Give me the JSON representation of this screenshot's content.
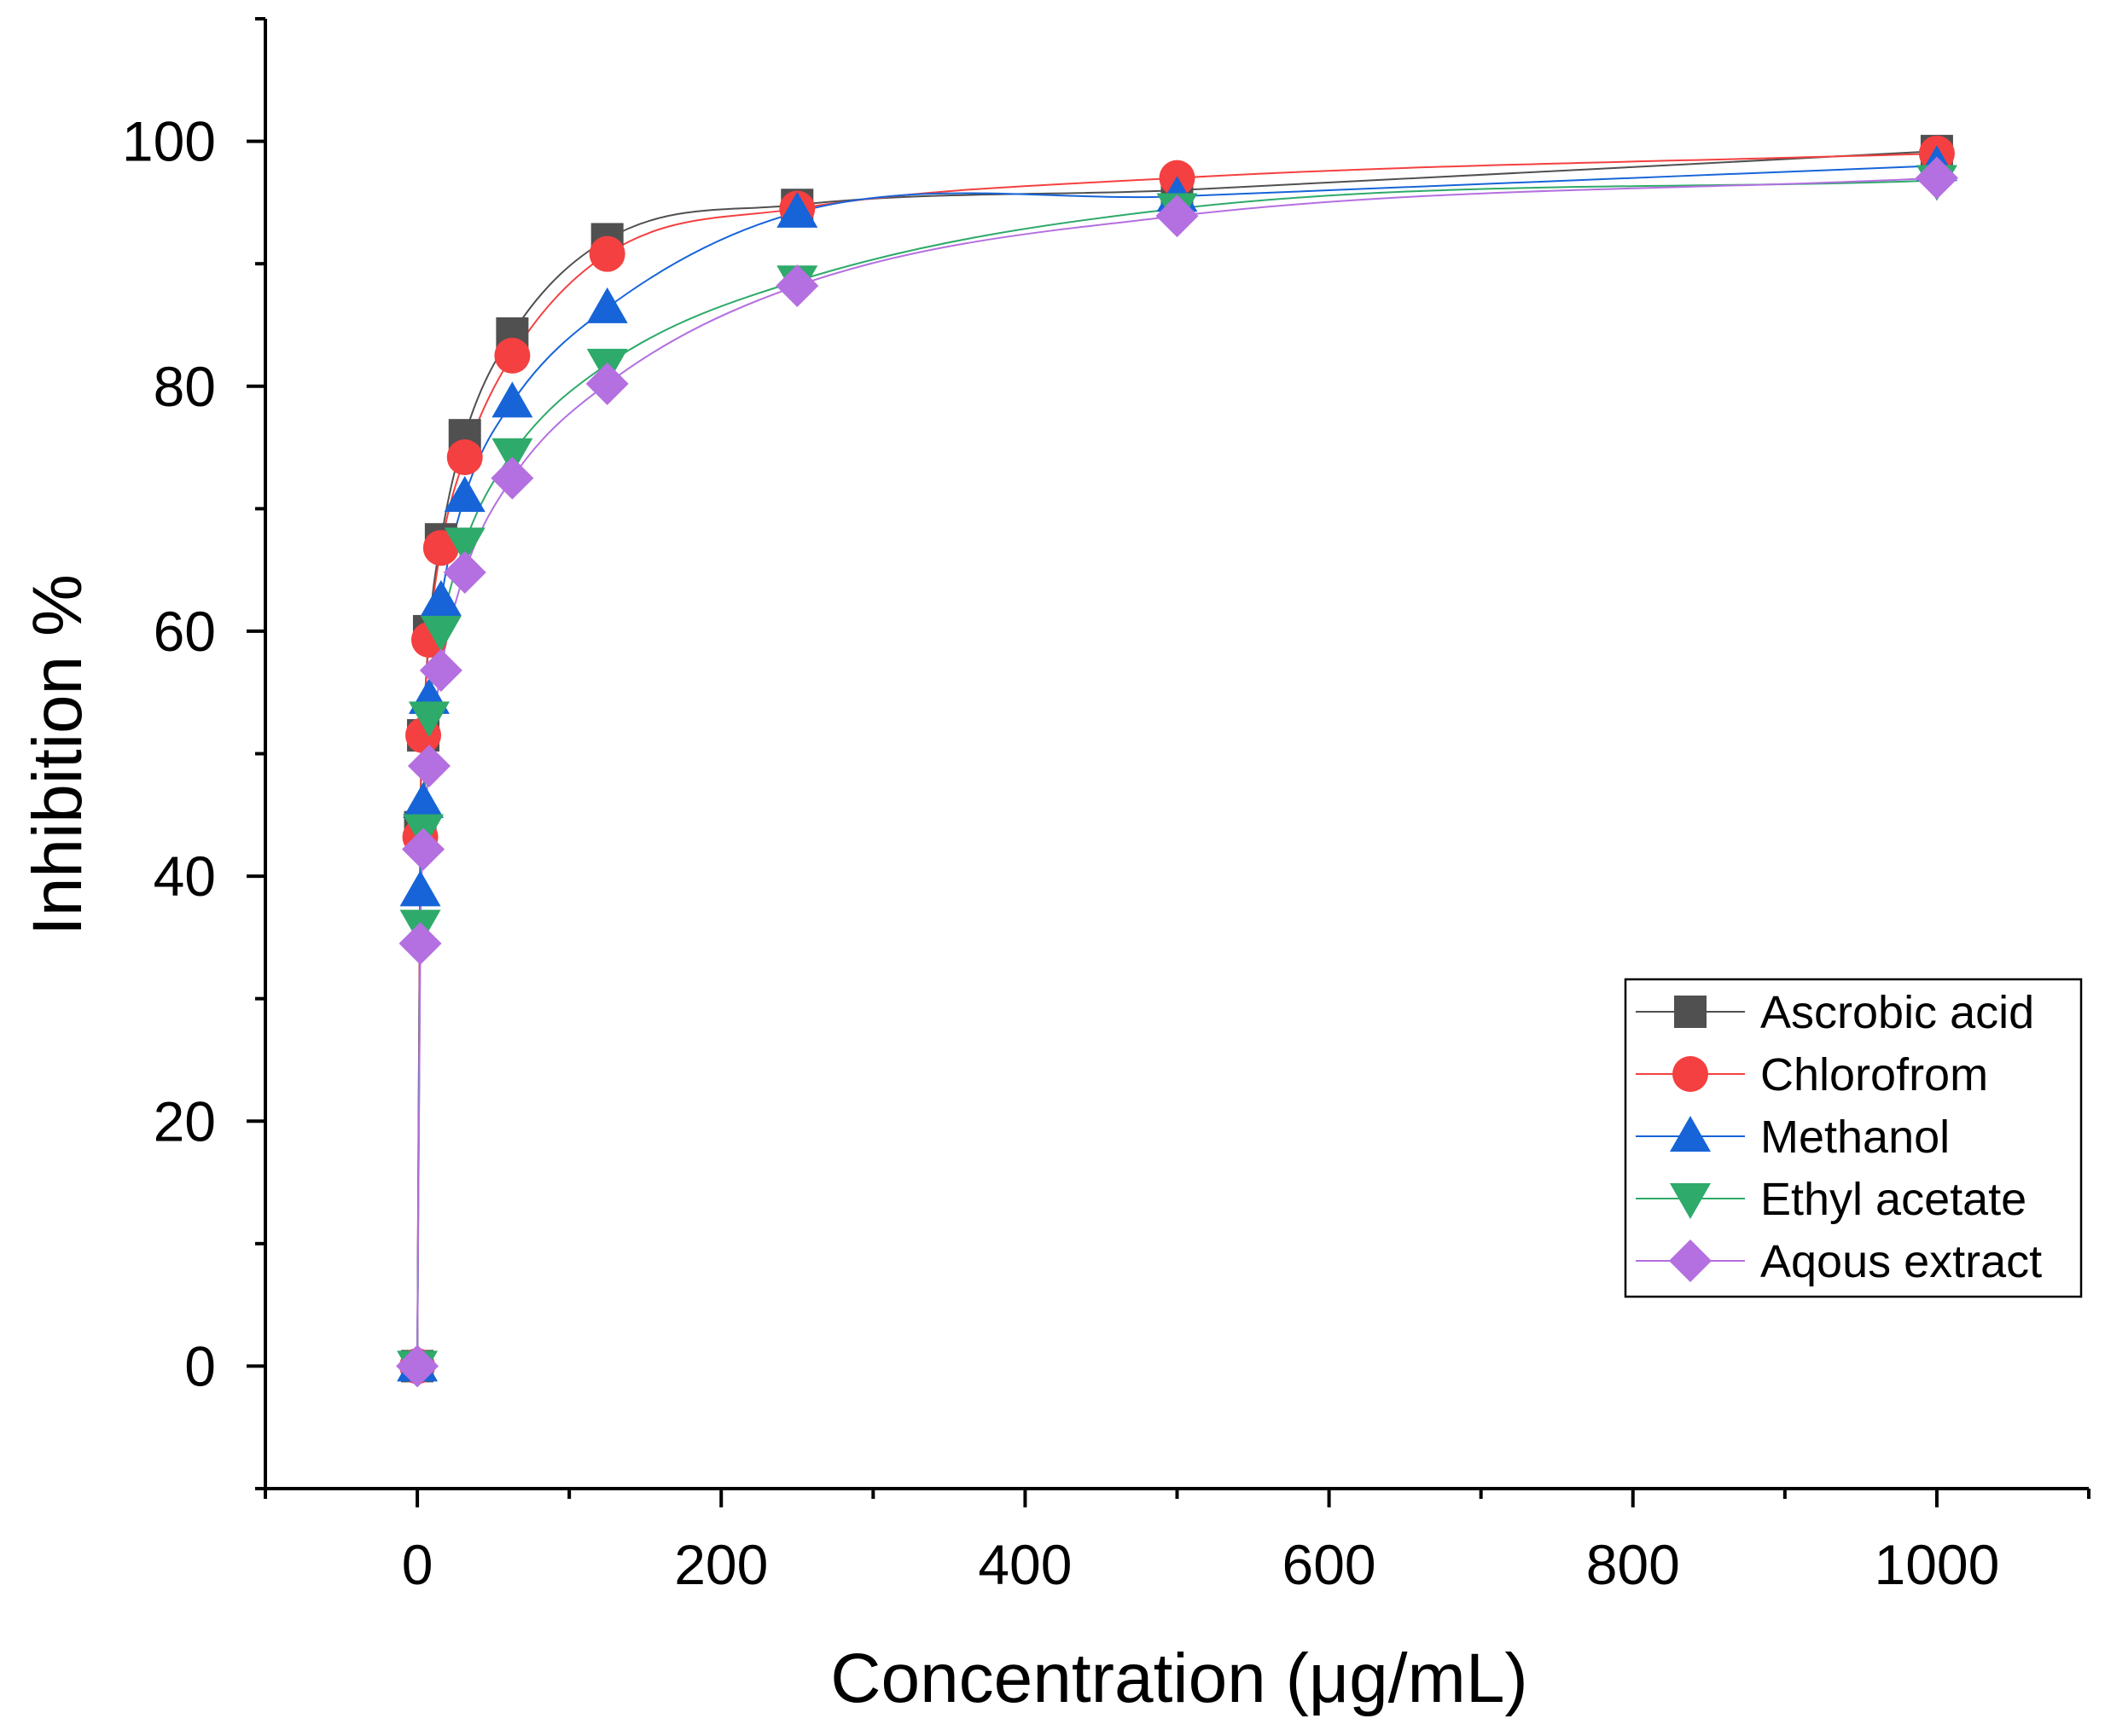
{
  "chart_data": {
    "type": "line",
    "xlabel": "Concentration (μg/mL)",
    "ylabel": "Inhibition %",
    "xlim": [
      -100,
      1100
    ],
    "ylim": [
      -10,
      110
    ],
    "xticks": [
      0,
      200,
      400,
      600,
      800,
      1000
    ],
    "yticks": [
      0,
      20,
      40,
      60,
      80,
      100
    ],
    "xminor": [
      -100,
      100,
      300,
      500,
      700,
      900,
      1100
    ],
    "yminor": [
      -10,
      10,
      30,
      50,
      70,
      90,
      110
    ],
    "legend_position": "bottom-right",
    "grid": false,
    "x": [
      0,
      1.95,
      3.9,
      7.8,
      15.6,
      31.25,
      62.5,
      125,
      250,
      500,
      1000
    ],
    "series": [
      {
        "name": "Ascrobic acid",
        "marker": "square",
        "color": "#505050",
        "values": [
          0,
          44.0,
          51.5,
          60.0,
          67.5,
          76.0,
          84.3,
          92.0,
          94.8,
          96.0,
          99.2
        ]
      },
      {
        "name": "Chlorofrom",
        "marker": "circle",
        "color": "#f44040",
        "values": [
          0,
          43.2,
          51.5,
          59.3,
          66.8,
          74.2,
          82.5,
          90.8,
          94.5,
          97.0,
          99.0
        ]
      },
      {
        "name": "Methanol",
        "marker": "triangle-up",
        "color": "#1664d8",
        "values": [
          0,
          38.8,
          46.0,
          54.5,
          62.5,
          71.0,
          78.7,
          86.4,
          94.2,
          95.5,
          98.0
        ]
      },
      {
        "name": "Ethyl acetate",
        "marker": "triangle-down",
        "color": "#2eaa6a",
        "values": [
          0,
          36.0,
          43.8,
          53.0,
          60.0,
          67.2,
          74.5,
          81.8,
          88.6,
          94.5,
          96.8
        ]
      },
      {
        "name": "Aqous extract",
        "marker": "diamond",
        "color": "#b46fe0",
        "values": [
          0,
          34.5,
          42.2,
          49.0,
          56.8,
          64.8,
          72.5,
          80.2,
          88.2,
          93.9,
          97.0
        ]
      }
    ]
  }
}
